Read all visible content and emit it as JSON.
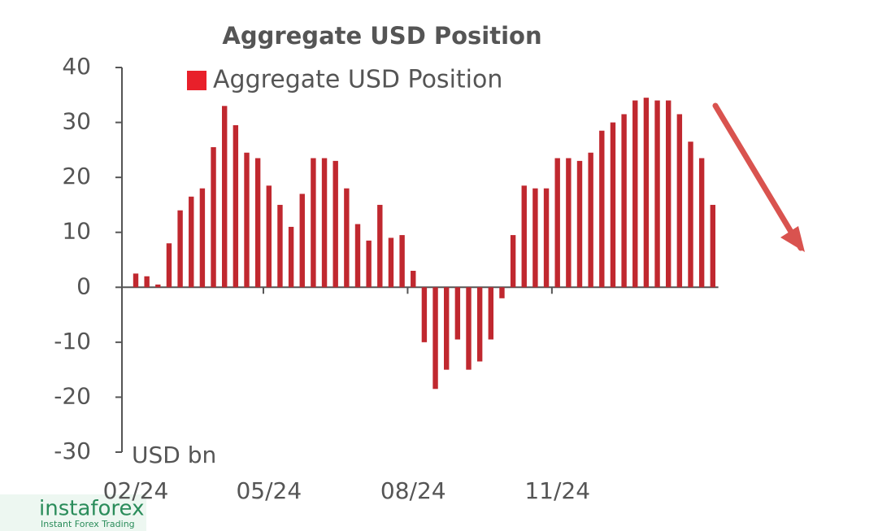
{
  "chart_data": {
    "type": "bar",
    "title": "Aggregate USD Position",
    "y_label": "USD bn",
    "categories": [
      "02/24",
      null,
      null,
      null,
      null,
      null,
      null,
      null,
      null,
      null,
      null,
      null,
      "05/24",
      null,
      null,
      null,
      null,
      null,
      null,
      null,
      null,
      null,
      null,
      null,
      null,
      "08/24",
      null,
      null,
      null,
      null,
      null,
      null,
      null,
      null,
      null,
      null,
      null,
      null,
      "11/24",
      null,
      null,
      null,
      null,
      null,
      null,
      null,
      null,
      null,
      null,
      null,
      null,
      null,
      null
    ],
    "series": [
      {
        "name": "Aggregate USD Position",
        "color": "#c0282f",
        "values": [
          2.5,
          2,
          0.5,
          8,
          14,
          16.5,
          18,
          25.5,
          33,
          29.5,
          24.5,
          23.5,
          18.5,
          15,
          11,
          17,
          23.5,
          23.5,
          23,
          18,
          11.5,
          8.5,
          15,
          9,
          9.5,
          3,
          -10,
          -18.5,
          -15,
          -9.5,
          -15,
          -13.5,
          -9.5,
          -2,
          9.5,
          18.5,
          18,
          18,
          23.5,
          23.5,
          23,
          24.5,
          28.5,
          30,
          31.5,
          34,
          34.5,
          34,
          34,
          31.5,
          26.5,
          23.5,
          15
        ]
      }
    ],
    "ylim": [
      -30,
      40
    ],
    "yticks": [
      -30,
      -20,
      -10,
      0,
      10,
      20,
      30,
      40
    ]
  },
  "watermark": {
    "brand": "instaforex",
    "tagline": "Instant Forex Trading"
  }
}
